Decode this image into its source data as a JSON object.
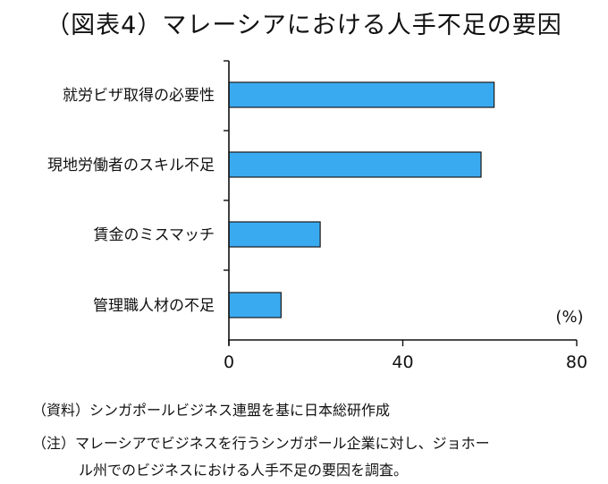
{
  "chart_data": {
    "type": "bar",
    "orientation": "horizontal",
    "title": "（図表4）マレーシアにおける人手不足の要因",
    "categories": [
      "就労ビザ取得の必要性",
      "現地労働者のスキル不足",
      "賃金のミスマッチ",
      "管理職人材の不足"
    ],
    "values": [
      61,
      58,
      21,
      12
    ],
    "unit_label": "(%)",
    "xlim": [
      0,
      80
    ],
    "xticks": [
      "0",
      "40",
      "80"
    ],
    "bar_color": "#3aaaf0",
    "grid": false
  },
  "notes": {
    "source": "（資料）シンガポールビジネス連盟を基に日本総研作成",
    "note_line1": "（注）マレーシアでビジネスを行うシンガポール企業に対し、ジョホー",
    "note_line2": "ル州でのビジネスにおける人手不足の要因を調査。"
  }
}
